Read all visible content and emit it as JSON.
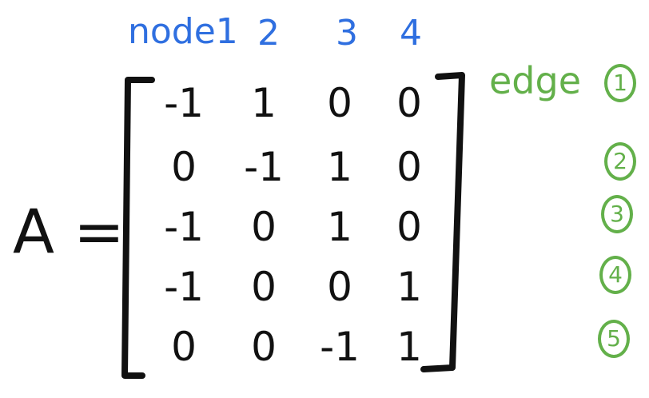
{
  "header": {
    "node_label": "node1",
    "cols": [
      "2",
      "3",
      "4"
    ]
  },
  "lhs": "A =",
  "matrix": [
    [
      "-1",
      "1",
      "0",
      "0"
    ],
    [
      "0",
      "-1",
      "1",
      "0"
    ],
    [
      "-1",
      "0",
      "1",
      "0"
    ],
    [
      "-1",
      "0",
      "0",
      "1"
    ],
    [
      "0",
      "0",
      "-1",
      "1"
    ]
  ],
  "edges": {
    "word": "edge",
    "numbers": [
      "1",
      "2",
      "3",
      "4",
      "5"
    ]
  },
  "colors": {
    "ink": "#111111",
    "nodes": "#2f6fe0",
    "edges": "#63b04a"
  }
}
